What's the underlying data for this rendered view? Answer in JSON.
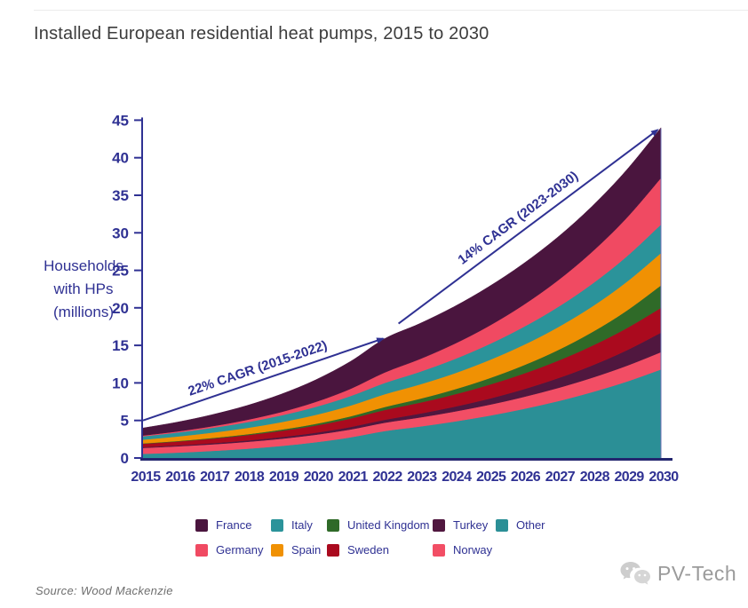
{
  "page": {
    "title": "Installed European residential heat pumps, 2015 to 2030",
    "source": "Source: Wood Mackenzie",
    "watermark": "PV-Tech"
  },
  "chart_data": {
    "type": "area",
    "stacked": true,
    "title": "Installed European residential heat pumps, 2015 to 2030",
    "ylabel": "Households with HPs (millions)",
    "ylabel_lines": [
      "Households",
      "with HPs",
      "(millions)"
    ],
    "xlabel": "",
    "ylim": [
      0,
      45
    ],
    "yticks": [
      0,
      5,
      10,
      15,
      20,
      25,
      30,
      35,
      40,
      45
    ],
    "grid": false,
    "legend_position": "bottom",
    "x": [
      2015,
      2016,
      2017,
      2018,
      2019,
      2020,
      2021,
      2022,
      2023,
      2024,
      2025,
      2026,
      2027,
      2028,
      2029,
      2030
    ],
    "series": [
      {
        "name": "Other",
        "color": "#2b8f96",
        "values": [
          0.55,
          0.72,
          0.94,
          1.23,
          1.61,
          2.1,
          2.75,
          3.6,
          4.18,
          4.85,
          5.62,
          6.52,
          7.56,
          8.77,
          10.17,
          11.8
        ]
      },
      {
        "name": "Norway",
        "color": "#f24e65",
        "values": [
          0.8,
          0.84,
          0.88,
          0.92,
          0.96,
          1.0,
          1.05,
          1.1,
          1.21,
          1.32,
          1.45,
          1.59,
          1.75,
          1.92,
          2.1,
          2.3
        ]
      },
      {
        "name": "Turkey",
        "color": "#50173f",
        "values": [
          0.1,
          0.12,
          0.15,
          0.18,
          0.22,
          0.27,
          0.33,
          0.4,
          0.51,
          0.64,
          0.81,
          1.02,
          1.29,
          1.63,
          2.06,
          2.6
        ]
      },
      {
        "name": "Sweden",
        "color": "#aa0a1e",
        "values": [
          0.45,
          0.52,
          0.61,
          0.71,
          0.83,
          0.96,
          1.12,
          1.3,
          1.46,
          1.64,
          1.85,
          2.08,
          2.33,
          2.62,
          2.94,
          3.3
        ]
      },
      {
        "name": "United Kingdom",
        "color": "#2f6a28",
        "values": [
          0.05,
          0.07,
          0.09,
          0.12,
          0.16,
          0.22,
          0.3,
          0.4,
          0.51,
          0.66,
          0.85,
          1.1,
          1.41,
          1.81,
          2.33,
          3.0
        ]
      },
      {
        "name": "Spain",
        "color": "#f09103",
        "values": [
          0.5,
          0.6,
          0.71,
          0.84,
          1.0,
          1.2,
          1.43,
          1.7,
          1.91,
          2.14,
          2.41,
          2.7,
          3.04,
          3.41,
          3.83,
          4.3
        ]
      },
      {
        "name": "Italy",
        "color": "#2b939a",
        "values": [
          0.45,
          0.53,
          0.64,
          0.76,
          0.9,
          1.06,
          1.26,
          1.5,
          1.68,
          1.89,
          2.12,
          2.39,
          2.68,
          3.01,
          3.38,
          3.8
        ]
      },
      {
        "name": "Germany",
        "color": "#f04a62",
        "values": [
          0.1,
          0.15,
          0.21,
          0.31,
          0.45,
          0.66,
          0.96,
          1.4,
          1.69,
          2.03,
          2.44,
          2.94,
          3.54,
          4.27,
          5.14,
          6.2
        ]
      },
      {
        "name": "France",
        "color": "#4a153e",
        "values": [
          1.0,
          1.24,
          1.54,
          1.91,
          2.37,
          2.94,
          3.64,
          4.5,
          4.73,
          4.97,
          5.23,
          5.49,
          5.77,
          6.07,
          6.38,
          6.7
        ]
      }
    ],
    "legend_rows": [
      [
        "France",
        "Italy",
        "United Kingdom",
        "Turkey",
        "Other"
      ],
      [
        "Germany",
        "Spain",
        "Sweden",
        "Norway"
      ]
    ],
    "annotations": [
      {
        "text": "22% CAGR (2015-2022)",
        "from": {
          "year": 2015.0,
          "value": 5.0
        },
        "to": {
          "year": 2021.95,
          "value": 15.9
        }
      },
      {
        "text": "14% CAGR (2023-2030)",
        "from": {
          "year": 2022.4,
          "value": 17.9
        },
        "to": {
          "year": 2029.9,
          "value": 43.7
        }
      }
    ],
    "accent_color": "#2f3193",
    "axis_color": "#23256e"
  }
}
